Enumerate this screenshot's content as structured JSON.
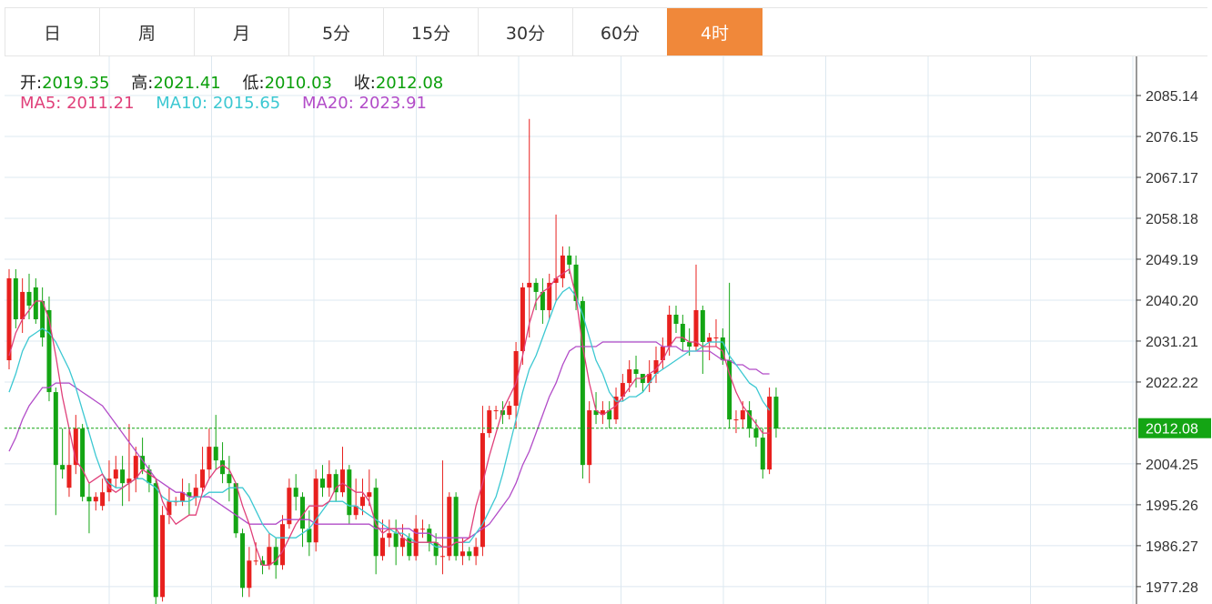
{
  "tabs": [
    {
      "label": "日",
      "active": false
    },
    {
      "label": "周",
      "active": false
    },
    {
      "label": "月",
      "active": false
    },
    {
      "label": "5分",
      "active": false
    },
    {
      "label": "15分",
      "active": false
    },
    {
      "label": "30分",
      "active": false
    },
    {
      "label": "60分",
      "active": false
    },
    {
      "label": "4时",
      "active": true
    }
  ],
  "ohlc": {
    "open_label": "开:",
    "open": "2019.35",
    "high_label": "高:",
    "high": "2021.41",
    "low_label": "低:",
    "low": "2010.03",
    "close_label": "收:",
    "close": "2012.08"
  },
  "ma": {
    "ma5_label": "MA5:",
    "ma5": "2011.21",
    "ma10_label": "MA10:",
    "ma10": "2015.65",
    "ma20_label": "MA20:",
    "ma20": "2023.91"
  },
  "colors": {
    "up": "#e8201e",
    "down": "#14a514",
    "ma5": "#e0407a",
    "ma10": "#3cc8d2",
    "ma20": "#b24cc8",
    "accent": "#f0883a",
    "grid": "#dde8f0"
  },
  "chart_data": {
    "type": "candlestick",
    "y_ticks": [
      2085.14,
      2076.15,
      2067.17,
      2058.18,
      2049.19,
      2040.2,
      2031.21,
      2022.22,
      2004.25,
      1995.26,
      1986.27,
      1977.28
    ],
    "last_price_label": "2012.08",
    "last_price": 2012.08,
    "ylim": [
      1974.0,
      2090.0
    ],
    "candles": [
      [
        2027,
        2045,
        2025,
        2047
      ],
      [
        2045,
        2036,
        2034,
        2047
      ],
      [
        2036,
        2042,
        2033,
        2045
      ],
      [
        2042,
        2039,
        2036,
        2046
      ],
      [
        2043,
        2036,
        2035,
        2045
      ],
      [
        2040,
        2032,
        2030,
        2043
      ],
      [
        2038,
        2020,
        2018,
        2041
      ],
      [
        2020,
        2004,
        1993,
        2021
      ],
      [
        2004,
        2003,
        2001,
        2012
      ],
      [
        1999,
        2004,
        1997,
        2012
      ],
      [
        2004,
        2012,
        2002,
        2015
      ],
      [
        2012,
        1997,
        1996,
        2013
      ],
      [
        1997,
        1996,
        1989,
        2000
      ],
      [
        1996,
        1997,
        1994,
        1998
      ],
      [
        1995,
        1998,
        1994,
        2001
      ],
      [
        1998,
        2001,
        1996,
        2005
      ],
      [
        2001,
        2003,
        1999,
        2006
      ],
      [
        2003,
        2000,
        1995,
        2006
      ],
      [
        2000,
        2001,
        1996,
        2013
      ],
      [
        2001,
        2006,
        1998,
        2008
      ],
      [
        2006,
        2003,
        2002,
        2010
      ],
      [
        2003,
        2000,
        1998,
        2004
      ],
      [
        2000,
        1975,
        1973,
        2001
      ],
      [
        1975,
        1993,
        1974,
        1995
      ],
      [
        1993,
        1996,
        1991,
        1999
      ],
      [
        1996,
        1996,
        1995,
        1997
      ],
      [
        1996,
        1998,
        1995,
        2001
      ],
      [
        1998,
        1997,
        1993,
        2000
      ],
      [
        1997,
        1999,
        1995,
        2002
      ],
      [
        1999,
        2003,
        1998,
        2008
      ],
      [
        2003,
        2008,
        2001,
        2012
      ],
      [
        2008,
        2005,
        2003,
        2015
      ],
      [
        2005,
        2002,
        2000,
        2009
      ],
      [
        2002,
        2000,
        1996,
        2006
      ],
      [
        2000,
        1989,
        1988,
        2000
      ],
      [
        1989,
        1977,
        1975,
        1990
      ],
      [
        1977,
        1983,
        1975,
        1986
      ],
      [
        1983,
        1983,
        1982,
        1987
      ],
      [
        1983,
        1982,
        1980,
        1984
      ],
      [
        1982,
        1986,
        1981,
        1989
      ],
      [
        1986,
        1982,
        1979,
        1988
      ],
      [
        1982,
        1991,
        1981,
        1993
      ],
      [
        1991,
        1999,
        1990,
        2001
      ],
      [
        1999,
        1997,
        1994,
        2002
      ],
      [
        1997,
        1990,
        1986,
        1998
      ],
      [
        1990,
        1987,
        1984,
        1994
      ],
      [
        1987,
        2001,
        1985,
        2003
      ],
      [
        2001,
        1999,
        1997,
        2004
      ],
      [
        1999,
        2002,
        1997,
        2005
      ],
      [
        2002,
        1998,
        1996,
        2003
      ],
      [
        1998,
        2003,
        1997,
        2008
      ],
      [
        2003,
        1993,
        1991,
        2004
      ],
      [
        1993,
        1995,
        1992,
        2001
      ],
      [
        1995,
        1997,
        1993,
        2001
      ],
      [
        1997,
        1998,
        1995,
        2003
      ],
      [
        1999,
        1984,
        1980,
        2001
      ],
      [
        1984,
        1988,
        1983,
        1992
      ],
      [
        1988,
        1989,
        1986,
        1992
      ],
      [
        1989,
        1986,
        1982,
        1992
      ],
      [
        1986,
        1988,
        1984,
        1991
      ],
      [
        1988,
        1984,
        1983,
        1989
      ],
      [
        1984,
        1990,
        1983,
        1993
      ],
      [
        1990,
        1990,
        1988,
        1992
      ],
      [
        1990,
        1987,
        1985,
        1991
      ],
      [
        1987,
        1984,
        1982,
        1989
      ],
      [
        1984,
        1984,
        1980,
        2005
      ],
      [
        1984,
        1997,
        1983,
        1998
      ],
      [
        1997,
        1984,
        1983,
        1998
      ],
      [
        1984,
        1985,
        1982,
        1988
      ],
      [
        1985,
        1984,
        1983,
        1986
      ],
      [
        1984,
        1986,
        1982,
        1988
      ],
      [
        1986,
        2011,
        1984,
        2017
      ],
      [
        2011,
        2016,
        2010,
        2017
      ],
      [
        2016,
        2016,
        2014,
        2017
      ],
      [
        2016,
        2015,
        2013,
        2018
      ],
      [
        2015,
        2017,
        2014,
        2018
      ],
      [
        2017,
        2029,
        2012,
        2031
      ],
      [
        2029,
        2043,
        2026,
        2044
      ],
      [
        2043,
        2044,
        2032,
        2080
      ],
      [
        2044,
        2042,
        2038,
        2045
      ],
      [
        2042,
        2038,
        2035,
        2045
      ],
      [
        2038,
        2044,
        2036,
        2046
      ],
      [
        2044,
        2045,
        2040,
        2059
      ],
      [
        2045,
        2050,
        2043,
        2052
      ],
      [
        2050,
        2048,
        2046,
        2052
      ],
      [
        2048,
        2040,
        2038,
        2050
      ],
      [
        2040,
        2004,
        2001,
        2041
      ],
      [
        2004,
        2016,
        2000,
        2018
      ],
      [
        2016,
        2015,
        2013,
        2020
      ],
      [
        2015,
        2016,
        2013,
        2018
      ],
      [
        2016,
        2014,
        2012,
        2018
      ],
      [
        2014,
        2019,
        2013,
        2021
      ],
      [
        2019,
        2022,
        2018,
        2024
      ],
      [
        2022,
        2025,
        2020,
        2027
      ],
      [
        2025,
        2024,
        2021,
        2028
      ],
      [
        2024,
        2022,
        2020,
        2024
      ],
      [
        2022,
        2024,
        2020,
        2027
      ],
      [
        2024,
        2027,
        2022,
        2030
      ],
      [
        2027,
        2030,
        2025,
        2032
      ],
      [
        2030,
        2037,
        2028,
        2039
      ],
      [
        2037,
        2035,
        2033,
        2039
      ],
      [
        2035,
        2031,
        2029,
        2037
      ],
      [
        2031,
        2030,
        2028,
        2034
      ],
      [
        2030,
        2038,
        2029,
        2048
      ],
      [
        2038,
        2031,
        2024,
        2039
      ],
      [
        2031,
        2032,
        2027,
        2033
      ],
      [
        2032,
        2032,
        2030,
        2036
      ],
      [
        2032,
        2027,
        2026,
        2034
      ],
      [
        2027,
        2014,
        2012,
        2044
      ],
      [
        2014,
        2014,
        2011,
        2016
      ],
      [
        2014,
        2016,
        2012,
        2018
      ],
      [
        2016,
        2012,
        2010,
        2018
      ],
      [
        2012,
        2010,
        2008,
        2014
      ],
      [
        2010,
        2003,
        2001,
        2012
      ],
      [
        2003,
        2019,
        2002,
        2021
      ],
      [
        2019,
        2012,
        2010,
        2021
      ]
    ],
    "ma5": [
      2028,
      2033,
      2036,
      2038,
      2040,
      2040,
      2036,
      2028,
      2019,
      2012,
      2005,
      2003,
      2000,
      2001,
      2002,
      1999,
      1998,
      1999,
      2000,
      2001,
      2003,
      2002,
      2001,
      1996,
      1993,
      1991,
      1992,
      1993,
      1993,
      1998,
      2001,
      2003,
      2004,
      2003,
      2000,
      1995,
      1991,
      1986,
      1982,
      1982,
      1983,
      1985,
      1988,
      1991,
      1993,
      1995,
      1995,
      1995,
      1996,
      1999,
      2000,
      1999,
      1998,
      1998,
      1996,
      1991,
      1989,
      1990,
      1990,
      1988,
      1987,
      1987,
      1987,
      1987,
      1987,
      1986,
      1986,
      1987,
      1987,
      1988,
      1995,
      2000,
      2006,
      2011,
      2016,
      2019,
      2022,
      2028,
      2035,
      2040,
      2042,
      2043,
      2045,
      2046,
      2047,
      2041,
      2030,
      2022,
      2016,
      2015,
      2016,
      2017,
      2019,
      2021,
      2023,
      2023,
      2024,
      2025,
      2027,
      2030,
      2032,
      2032,
      2031,
      2031,
      2030,
      2030,
      2030,
      2029,
      2024,
      2020,
      2017,
      2015,
      2013,
      2011,
      2011
    ],
    "ma10": [
      2020,
      2024,
      2029,
      2032,
      2033,
      2034,
      2033,
      2031,
      2028,
      2025,
      2021,
      2016,
      2011,
      2006,
      2002,
      2000,
      1999,
      1999,
      2000,
      2001,
      2001,
      2000,
      1999,
      1997,
      1996,
      1996,
      1996,
      1996,
      1997,
      1997,
      1998,
      1998,
      1998,
      1999,
      1999,
      1999,
      1997,
      1994,
      1991,
      1989,
      1988,
      1988,
      1988,
      1988,
      1989,
      1990,
      1992,
      1994,
      1996,
      1996,
      1996,
      1995,
      1995,
      1994,
      1993,
      1992,
      1991,
      1990,
      1989,
      1989,
      1988,
      1987,
      1987,
      1987,
      1986,
      1986,
      1986,
      1987,
      1987,
      1987,
      1989,
      1991,
      1994,
      1997,
      2002,
      2008,
      2014,
      2020,
      2025,
      2028,
      2032,
      2036,
      2040,
      2042,
      2043,
      2041,
      2037,
      2032,
      2027,
      2024,
      2020,
      2018,
      2018,
      2019,
      2019,
      2020,
      2022,
      2024,
      2025,
      2026,
      2027,
      2028,
      2029,
      2029,
      2030,
      2031,
      2031,
      2031,
      2028,
      2026,
      2024,
      2022,
      2021,
      2018,
      2016
    ],
    "ma20": [
      2007,
      2010,
      2014,
      2017,
      2019,
      2021,
      2021,
      2022,
      2022,
      2022,
      2021,
      2020,
      2019,
      2018,
      2017,
      2015,
      2013,
      2011,
      2009,
      2007,
      2005,
      2003,
      2001,
      2000,
      1999,
      1998,
      1998,
      1997,
      1997,
      1997,
      1997,
      1996,
      1995,
      1994,
      1993,
      1992,
      1991,
      1991,
      1991,
      1991,
      1991,
      1992,
      1992,
      1992,
      1992,
      1992,
      1991,
      1991,
      1991,
      1991,
      1991,
      1991,
      1991,
      1991,
      1991,
      1990,
      1990,
      1990,
      1990,
      1990,
      1990,
      1989,
      1989,
      1989,
      1988,
      1988,
      1988,
      1988,
      1988,
      1988,
      1989,
      1990,
      1991,
      1993,
      1995,
      1997,
      2000,
      2004,
      2007,
      2011,
      2015,
      2019,
      2022,
      2026,
      2029,
      2030,
      2030,
      2030,
      2030,
      2031,
      2031,
      2031,
      2031,
      2031,
      2031,
      2031,
      2031,
      2031,
      2030,
      2030,
      2030,
      2029,
      2029,
      2029,
      2029,
      2029,
      2028,
      2027,
      2027,
      2026,
      2026,
      2025,
      2025,
      2024,
      2024
    ]
  }
}
